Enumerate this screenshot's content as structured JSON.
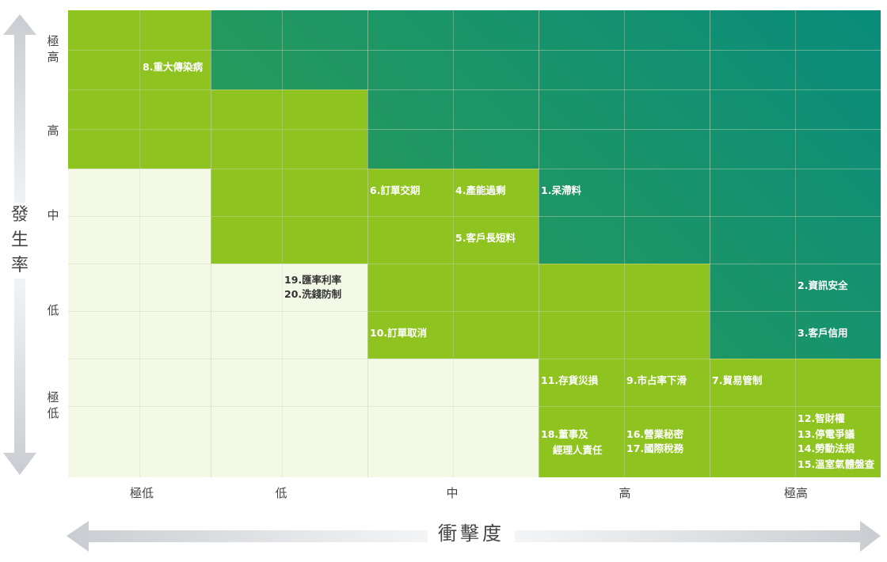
{
  "chart_data": {
    "type": "heatmap",
    "title": "",
    "xlabel": "衝擊度",
    "ylabel": "發生率",
    "x_categories": [
      "極低",
      "低",
      "中",
      "高",
      "極高"
    ],
    "y_categories_top_to_bottom": [
      "極高",
      "高",
      "中",
      "低",
      "極低"
    ],
    "y_tick_labels": [
      {
        "key": "very_high",
        "lines": [
          "極",
          "高"
        ]
      },
      {
        "key": "high",
        "lines": [
          "高"
        ]
      },
      {
        "key": "medium",
        "lines": [
          "中"
        ]
      },
      {
        "key": "low",
        "lines": [
          "低"
        ]
      },
      {
        "key": "very_low",
        "lines": [
          "極",
          "低"
        ]
      }
    ],
    "ylabel_lines": [
      "發",
      "生",
      "率"
    ],
    "zone_colors": {
      "low": "#f3f9e6",
      "medium": "#8fc31f",
      "high_start": "#3aa447",
      "high_end": "#098c7b",
      "line_light": "#dfe8cf",
      "arrow": "#d8dcdf",
      "label_dark": "#333333",
      "label_light": "#ffffff",
      "axis_text": "#444444"
    },
    "zones": [
      {
        "row": 0,
        "cols": [
          [
            0,
            1,
            "medium"
          ],
          [
            2,
            9,
            "high"
          ]
        ]
      },
      {
        "row": 1,
        "cols": [
          [
            0,
            3,
            "medium"
          ],
          [
            4,
            9,
            "high"
          ]
        ]
      },
      {
        "row": 2,
        "cols": [
          [
            0,
            1,
            "low"
          ],
          [
            2,
            5,
            "medium"
          ],
          [
            6,
            9,
            "high"
          ]
        ]
      },
      {
        "row": 3,
        "cols": [
          [
            0,
            3,
            "low"
          ],
          [
            4,
            7,
            "medium"
          ],
          [
            8,
            9,
            "high"
          ]
        ]
      },
      {
        "row": 4,
        "cols": [
          [
            0,
            5,
            "low"
          ],
          [
            6,
            9,
            "medium"
          ]
        ]
      }
    ],
    "risks": [
      {
        "label": "8.重大傳染病",
        "likelihood": "極高",
        "impact": "極低",
        "dark": false
      },
      {
        "label": "6.訂單交期",
        "likelihood": "中",
        "impact": "中",
        "dark": false
      },
      {
        "label": "4.產能過剩",
        "likelihood": "中",
        "impact": "中",
        "dark": false
      },
      {
        "label": "5.客戶長短料",
        "likelihood": "中",
        "impact": "中",
        "dark": false
      },
      {
        "label": "1.呆滯料",
        "likelihood": "中",
        "impact": "高",
        "dark": false
      },
      {
        "label": "19.匯率利率",
        "likelihood": "低",
        "impact": "低",
        "dark": true
      },
      {
        "label": "20.洗錢防制",
        "likelihood": "低",
        "impact": "低",
        "dark": true
      },
      {
        "label": "2.資訊安全",
        "likelihood": "低",
        "impact": "極高",
        "dark": false
      },
      {
        "label": "10.訂單取消",
        "likelihood": "低",
        "impact": "中",
        "dark": false
      },
      {
        "label": "3.客戶信用",
        "likelihood": "低",
        "impact": "極高",
        "dark": false
      },
      {
        "label": "11.存貨災損",
        "likelihood": "極低",
        "impact": "高",
        "dark": false
      },
      {
        "label": "9.市占率下滑",
        "likelihood": "極低",
        "impact": "高",
        "dark": false
      },
      {
        "label": "7.貿易管制",
        "likelihood": "極低",
        "impact": "極高",
        "dark": false
      },
      {
        "label": "18.董事及",
        "likelihood": "極低",
        "impact": "高",
        "dark": false
      },
      {
        "label": "經理人責任",
        "likelihood": "極低",
        "impact": "高",
        "dark": false
      },
      {
        "label": "16.營業秘密",
        "likelihood": "極低",
        "impact": "高",
        "dark": false
      },
      {
        "label": "17.國際稅務",
        "likelihood": "極低",
        "impact": "高",
        "dark": false
      },
      {
        "label": "12.智財權",
        "likelihood": "極低",
        "impact": "極高",
        "dark": false
      },
      {
        "label": "13.停電爭議",
        "likelihood": "極低",
        "impact": "極高",
        "dark": false
      },
      {
        "label": "14.勞動法規",
        "likelihood": "極低",
        "impact": "極高",
        "dark": false
      },
      {
        "label": "15.溫室氣體盤查",
        "likelihood": "極低",
        "impact": "極高",
        "dark": false
      }
    ]
  }
}
